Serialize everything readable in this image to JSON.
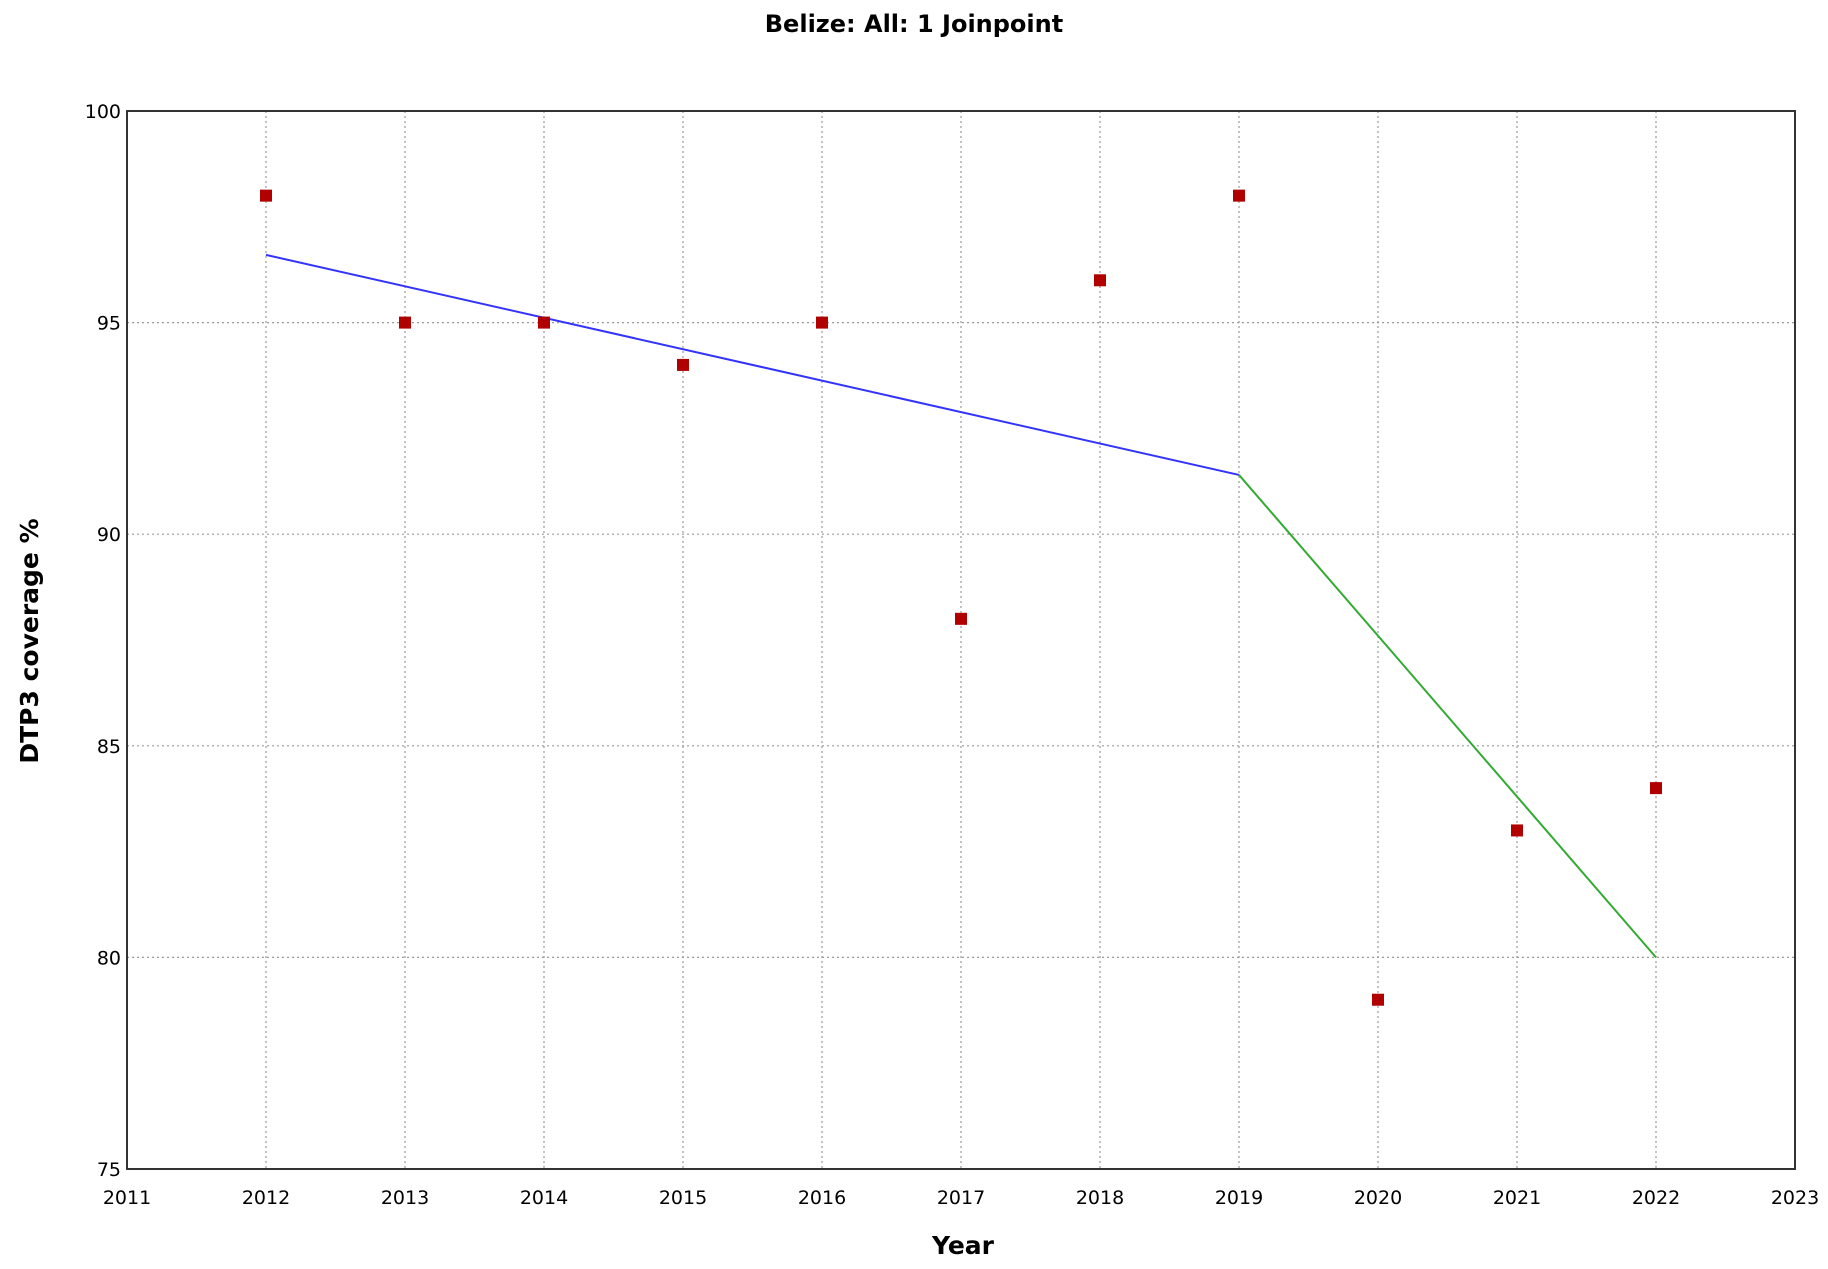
{
  "chart_data": {
    "type": "scatter",
    "title": "Belize: All: 1 Joinpoint",
    "xlabel": "Year",
    "ylabel": "DTP3 coverage %",
    "xlim": [
      2011,
      2023
    ],
    "ylim": [
      75,
      100
    ],
    "x_ticks": [
      2011,
      2012,
      2013,
      2014,
      2015,
      2016,
      2017,
      2018,
      2019,
      2020,
      2021,
      2022,
      2023
    ],
    "y_ticks": [
      75,
      80,
      85,
      90,
      95,
      100
    ],
    "grid": true,
    "legend": "none",
    "colors": {
      "points": "#b00000",
      "segment_1": "#3333ff",
      "segment_2": "#33aa33",
      "grid": "#9a9a9a",
      "frame": "#333333"
    },
    "series": [
      {
        "kind": "observed",
        "x": [
          2012,
          2013,
          2014,
          2015,
          2016,
          2017,
          2018,
          2019,
          2020,
          2021,
          2022
        ],
        "y": [
          98,
          95,
          95,
          94,
          95,
          88,
          96,
          98,
          79,
          83,
          84
        ]
      },
      {
        "kind": "fitted-segment",
        "x": [
          2012,
          2019
        ],
        "y": [
          96.6,
          91.4
        ]
      },
      {
        "kind": "fitted-segment",
        "x": [
          2019,
          2022
        ],
        "y": [
          91.4,
          80.0
        ]
      }
    ]
  }
}
